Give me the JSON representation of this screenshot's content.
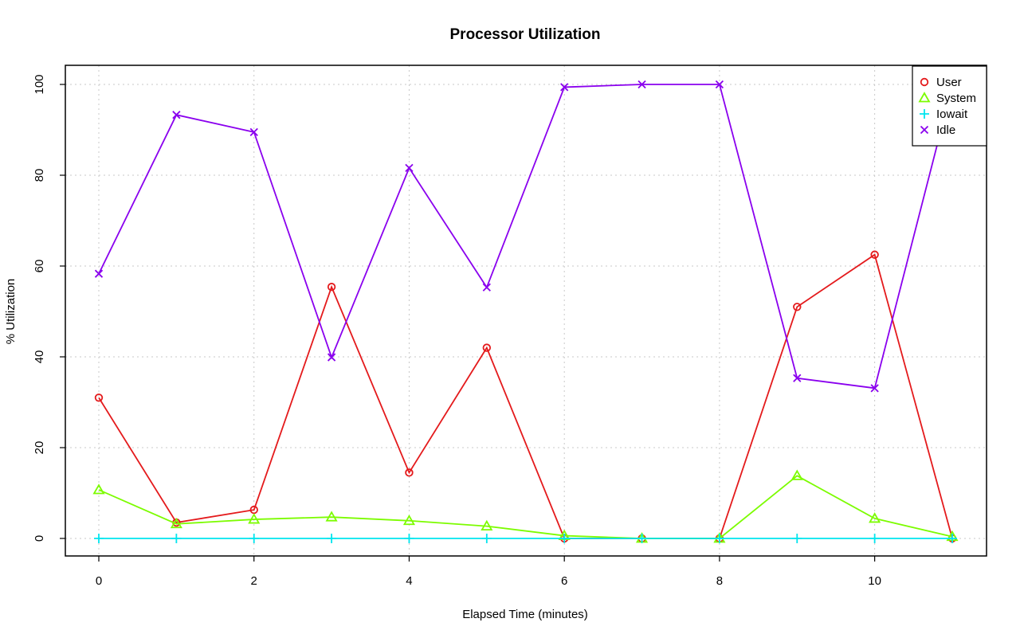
{
  "chart_data": {
    "type": "line",
    "title": "Processor Utilization",
    "xlabel": "Elapsed Time (minutes)",
    "ylabel": "% Utilization",
    "xlim": [
      0,
      11
    ],
    "ylim": [
      0,
      100
    ],
    "xticks": [
      0,
      2,
      4,
      6,
      8,
      10
    ],
    "yticks": [
      0,
      20,
      40,
      60,
      80,
      100
    ],
    "grid": true,
    "legend_position": "top-right",
    "x": [
      0,
      1,
      2,
      3,
      4,
      5,
      6,
      7,
      8,
      9,
      10,
      11
    ],
    "series": [
      {
        "name": "User",
        "color": "#e41a1c",
        "marker": "circle",
        "values": [
          31,
          3.5,
          6.3,
          55.4,
          14.5,
          42,
          0,
          0,
          0,
          51,
          62.5,
          0
        ]
      },
      {
        "name": "System",
        "color": "#7cfc00",
        "marker": "triangle",
        "values": [
          10.7,
          3.2,
          4.2,
          4.7,
          3.9,
          2.7,
          0.6,
          0,
          0,
          13.8,
          4.4,
          0.4
        ]
      },
      {
        "name": "Iowait",
        "color": "#00e5ee",
        "marker": "plus",
        "values": [
          0,
          0,
          0,
          0,
          0,
          0,
          0,
          0,
          0,
          0,
          0,
          0
        ]
      },
      {
        "name": "Idle",
        "color": "#8a00ee",
        "marker": "cross",
        "values": [
          58.3,
          93.3,
          89.5,
          39.9,
          81.6,
          55.3,
          99.4,
          100,
          100,
          35.3,
          33.1,
          99.6
        ]
      }
    ]
  }
}
